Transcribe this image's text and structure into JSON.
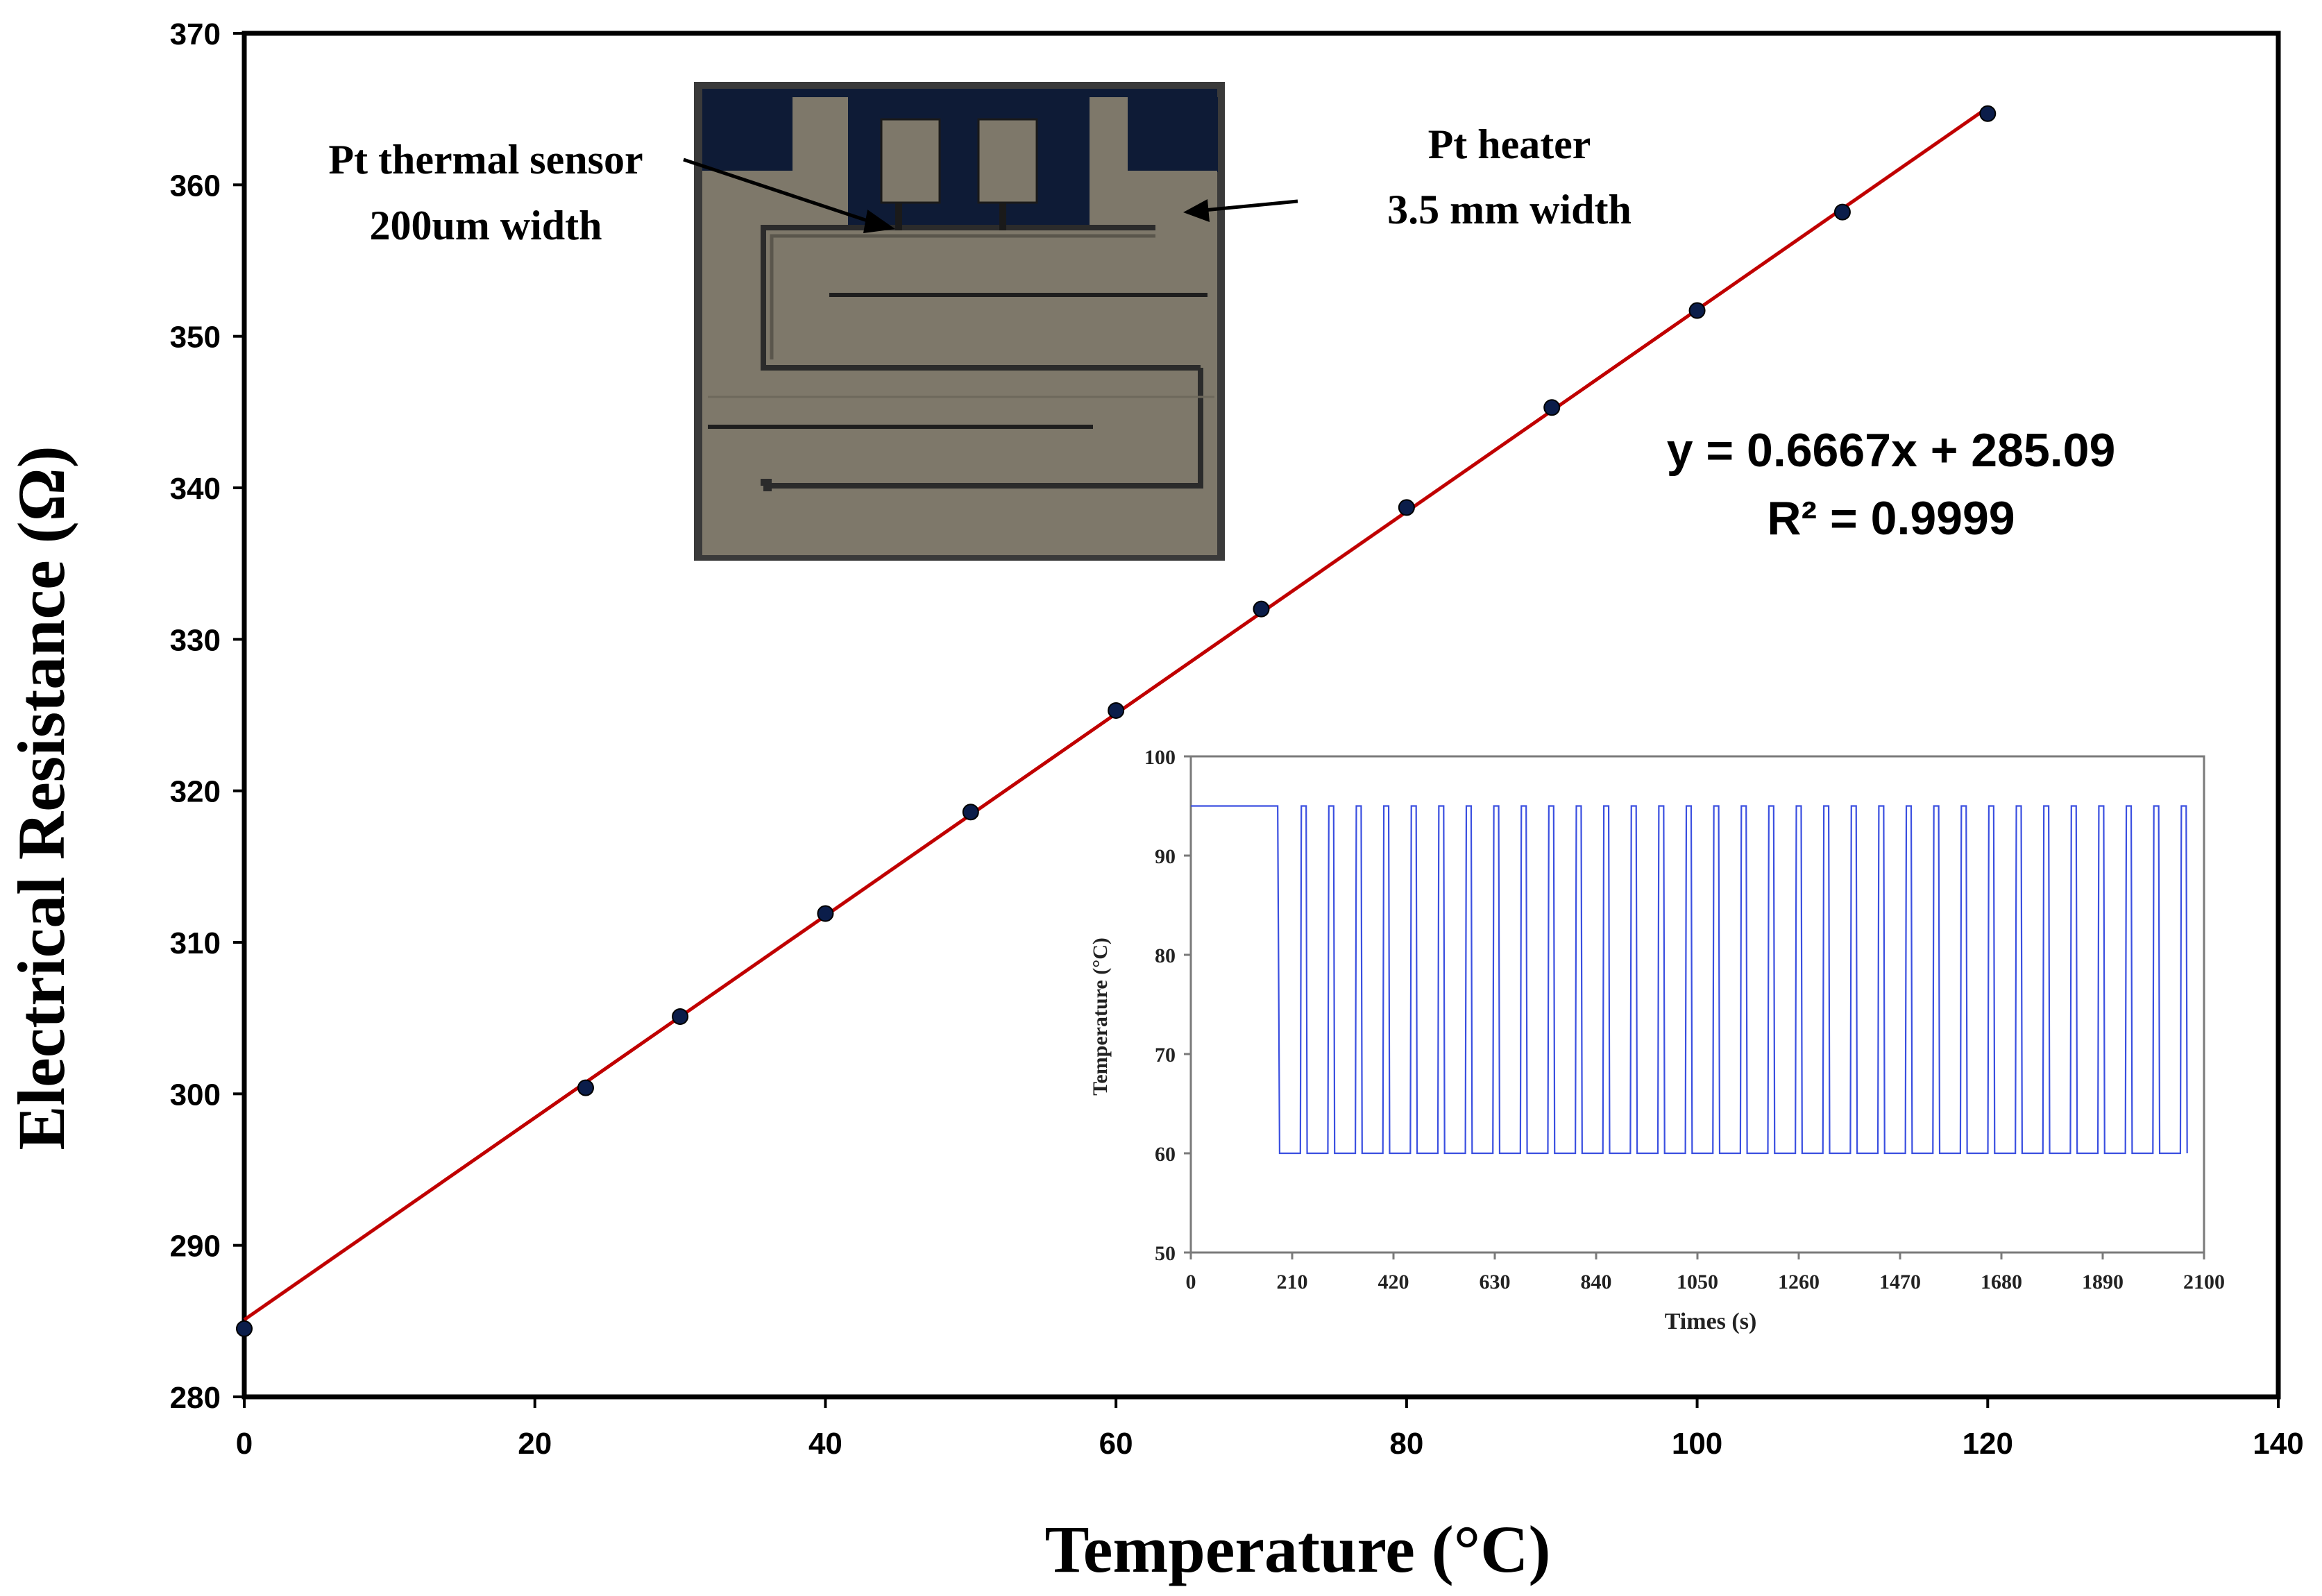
{
  "chart_data": [
    {
      "type": "scatter",
      "xlabel": "Temperature (°C)",
      "ylabel": "Electrical Resistance (Ω)",
      "xlim": [
        0,
        140
      ],
      "ylim": [
        280,
        370
      ],
      "xticks": [
        0,
        20,
        40,
        60,
        80,
        100,
        120,
        140
      ],
      "yticks": [
        280,
        290,
        300,
        310,
        320,
        330,
        340,
        350,
        360,
        370
      ],
      "grid": false,
      "legend": "none",
      "series": [
        {
          "x": [
            0,
            23.5,
            30,
            40,
            50,
            60,
            70,
            80,
            90,
            100,
            110,
            120
          ],
          "values": [
            284.5,
            300.4,
            305.1,
            311.9,
            318.6,
            325.3,
            332.0,
            338.7,
            345.3,
            351.7,
            358.2,
            364.7
          ],
          "color": "#0b1d4a"
        }
      ],
      "trendline": {
        "type": "linear",
        "slope": 0.6667,
        "intercept": 285.09,
        "x_range": [
          0,
          120
        ],
        "color": "#c00000"
      },
      "annotations": {
        "equation": "y = 0.6667x + 285.09",
        "r_squared": "R² = 0.9999",
        "sensor_label_1": "Pt thermal sensor",
        "sensor_label_2": "200um width",
        "heater_label_1": "Pt heater",
        "heater_label_2": "3.5 mm width"
      },
      "photo_inset": {
        "description_icon": "pt-heater-chip-photo",
        "colors": {
          "substrate": "#7e786a",
          "pads": "#0e1b36",
          "frame": "#3a3a3a"
        }
      }
    },
    {
      "type": "line",
      "xlabel": "Times (s)",
      "ylabel": "Temperature (°C)",
      "xlim": [
        0,
        2100
      ],
      "ylim": [
        50,
        100
      ],
      "xticks": [
        0,
        210,
        420,
        630,
        840,
        1050,
        1260,
        1470,
        1680,
        1890,
        2100
      ],
      "yticks": [
        50,
        60,
        70,
        80,
        90,
        100
      ],
      "grid": false,
      "legend": "none",
      "series": [
        {
          "color": "#3a4fe0",
          "high": 95,
          "low": 60,
          "initial_hold_end": 180,
          "cycle_period_s": 55,
          "high_duration_s": 12,
          "cycles": 35
        }
      ]
    }
  ]
}
